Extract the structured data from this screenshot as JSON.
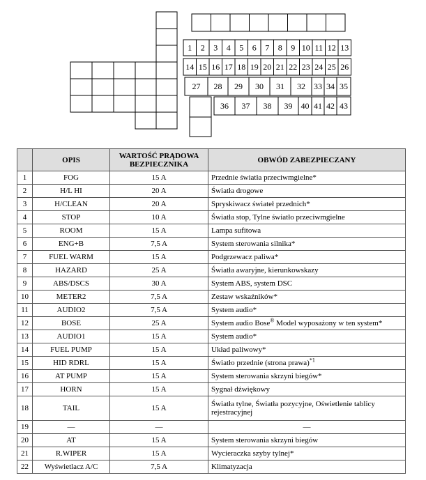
{
  "diagram": {
    "fuses": [
      "1",
      "2",
      "3",
      "4",
      "5",
      "6",
      "7",
      "8",
      "9",
      "10",
      "11",
      "12",
      "13",
      "14",
      "15",
      "16",
      "17",
      "18",
      "19",
      "20",
      "21",
      "22",
      "23",
      "24",
      "25",
      "26",
      "27",
      "28",
      "29",
      "30",
      "31",
      "32",
      "33",
      "34",
      "35",
      "36",
      "37",
      "38",
      "39",
      "40",
      "41",
      "42",
      "43"
    ]
  },
  "table": {
    "header": [
      "",
      "OPIS",
      [
        "WARTOŚĆ PRĄDOWA",
        "BEZPIECZNIKA"
      ],
      "OBWÓD ZABEZPIECZANY"
    ],
    "rows": [
      [
        "1",
        "FOG",
        "15 A",
        "Przednie światła przeciwmgielne*"
      ],
      [
        "2",
        "H/L HI",
        "20 A",
        "Światła drogowe"
      ],
      [
        "3",
        "H/CLEAN",
        "20 A",
        "Spryskiwacz świateł przednich*"
      ],
      [
        "4",
        "STOP",
        "10 A",
        "Światła stop, Tylne światło przeciwmgielne"
      ],
      [
        "5",
        "ROOM",
        "15 A",
        "Lampa sufitowa"
      ],
      [
        "6",
        "ENG+B",
        "7,5 A",
        "System sterowania silnika*"
      ],
      [
        "7",
        "FUEL WARM",
        "15 A",
        "Podgrzewacz paliwa*"
      ],
      [
        "8",
        "HAZARD",
        "25 A",
        "Światła awaryjne, kierunkowskazy"
      ],
      [
        "9",
        "ABS/DSCS",
        "30 A",
        "System ABS, system DSC"
      ],
      [
        "10",
        "METER2",
        "7,5 A",
        "Zestaw wskaźników*"
      ],
      [
        "11",
        "AUDIO2",
        "7,5 A",
        "System audio*"
      ],
      [
        "12",
        "BOSE",
        "25 A",
        [
          "System audio Bose",
          "®",
          " Model wyposażony w ten system*"
        ]
      ],
      [
        "13",
        "AUDIO1",
        "15 A",
        "System audio*"
      ],
      [
        "14",
        "FUEL PUMP",
        "15 A",
        "Układ paliwowy*"
      ],
      [
        "15",
        "HID RDRL",
        "15 A",
        [
          "Światło przednie (strona prawa)",
          "*1"
        ]
      ],
      [
        "16",
        "AT PUMP",
        "15 A",
        "System sterowania skrzyni biegów*"
      ],
      [
        "17",
        "HORN",
        "15 A",
        "Sygnał dźwiękowy"
      ],
      [
        "18",
        "TAIL",
        "15 A",
        "Światła tylne, Światła pozycyjne, Oświetlenie tablicy rejestracyjnej"
      ],
      [
        "19",
        "—",
        "—",
        "—"
      ],
      [
        "20",
        "AT",
        "15 A",
        "System sterowania skrzyni biegów"
      ],
      [
        "21",
        "R.WIPER",
        "15 A",
        "Wycieraczka szyby tylnej*"
      ],
      [
        "22",
        "Wyświetlacz A/C",
        "7,5 A",
        "Klimatyzacja"
      ]
    ]
  }
}
